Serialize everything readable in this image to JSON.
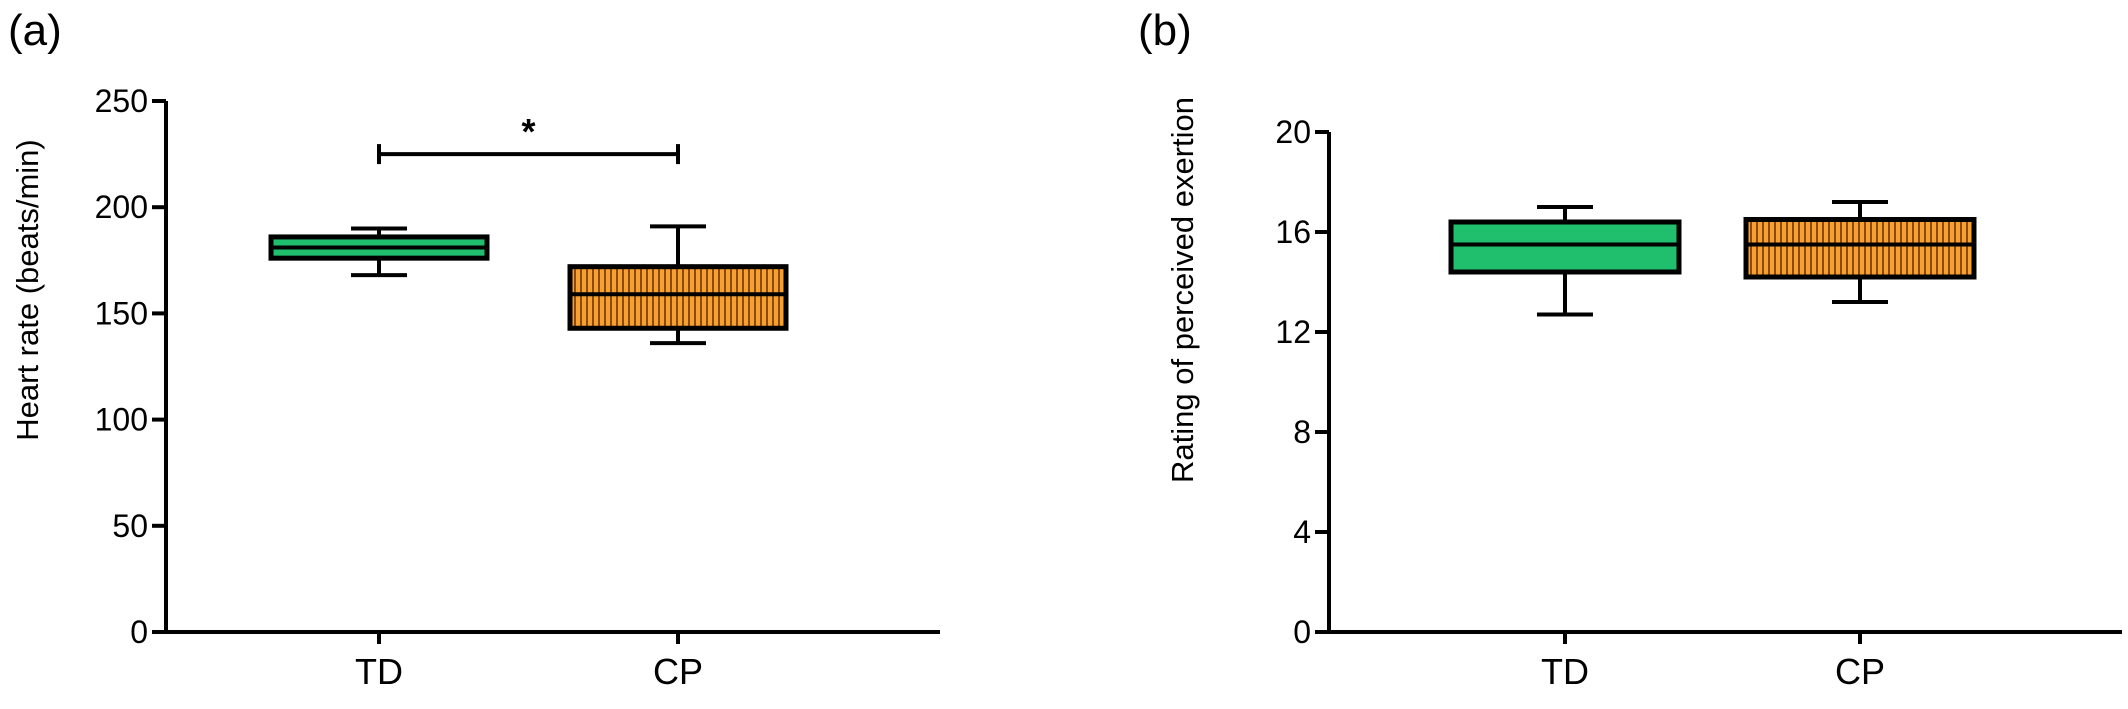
{
  "panels": [
    {
      "label": "(a)"
    },
    {
      "label": "(b)"
    }
  ],
  "chart_data": [
    {
      "type": "box",
      "panel": "(a)",
      "categories": [
        "TD",
        "CP"
      ],
      "ylabel": "Heart rate (beats/min)",
      "ylim": [
        0,
        250
      ],
      "yticks": [
        0,
        50,
        100,
        150,
        200,
        250
      ],
      "ytick_labels": [
        "0",
        "50",
        "100",
        "150",
        "200",
        "250"
      ],
      "boxes": [
        {
          "category": "TD",
          "min": 168,
          "q1": 176,
          "median": 181,
          "q3": 186,
          "max": 190,
          "color": "#1fbf6e",
          "pattern": "solid"
        },
        {
          "category": "CP",
          "min": 136,
          "q1": 143,
          "median": 159,
          "q3": 172,
          "max": 191,
          "color": "#f5a030",
          "pattern": "vertical-stripes"
        }
      ],
      "significance": {
        "from": "TD",
        "to": "CP",
        "label": "*",
        "y": 225
      }
    },
    {
      "type": "box",
      "panel": "(b)",
      "categories": [
        "TD",
        "CP"
      ],
      "ylabel": "Rating of perceived exertion",
      "ylim": [
        0,
        20
      ],
      "yticks": [
        0,
        4,
        8,
        12,
        16,
        20
      ],
      "ytick_labels": [
        "0",
        "4",
        "8",
        "12",
        "16",
        "20"
      ],
      "boxes": [
        {
          "category": "TD",
          "min": 12.7,
          "q1": 14.4,
          "median": 15.5,
          "q3": 16.4,
          "max": 17.0,
          "color": "#1fbf6e",
          "pattern": "solid"
        },
        {
          "category": "CP",
          "min": 13.2,
          "q1": 14.2,
          "median": 15.5,
          "q3": 16.5,
          "max": 17.2,
          "color": "#f5a030",
          "pattern": "vertical-stripes"
        }
      ]
    }
  ]
}
